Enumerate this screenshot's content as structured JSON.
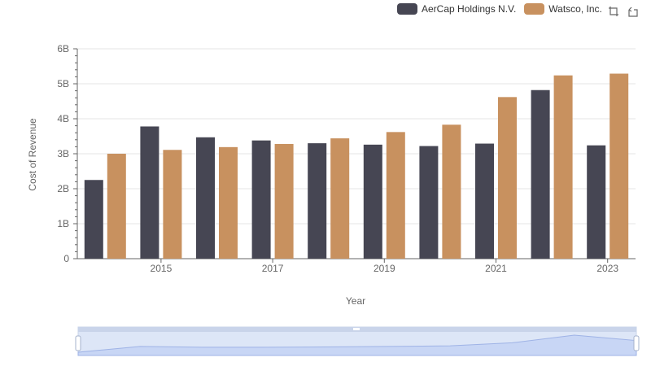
{
  "legend": {
    "series1": "AerCap Holdings N.V.",
    "series2": "Watsco, Inc."
  },
  "colors": {
    "series1": "#464653",
    "series2": "#c8915f"
  },
  "toolbox": {
    "icons": [
      "data-zoom-icon",
      "zoom-reset-icon"
    ]
  },
  "chart_data": {
    "type": "bar",
    "xlabel": "Year",
    "ylabel": "Cost of Revenue",
    "ylim": [
      0,
      6000000000
    ],
    "y_ticks": [
      "0",
      "1B",
      "2B",
      "3B",
      "4B",
      "5B",
      "6B"
    ],
    "categories": [
      "2014",
      "2015",
      "2016",
      "2017",
      "2018",
      "2019",
      "2020",
      "2021",
      "2022",
      "2023"
    ],
    "x_tick_labels": [
      "2015",
      "2017",
      "2019",
      "2021",
      "2023"
    ],
    "series": [
      {
        "name": "AerCap Holdings N.V.",
        "values": [
          2250000000,
          3780000000,
          3470000000,
          3380000000,
          3300000000,
          3260000000,
          3220000000,
          3290000000,
          4820000000,
          3240000000
        ]
      },
      {
        "name": "Watsco, Inc.",
        "values": [
          3000000000,
          3110000000,
          3190000000,
          3280000000,
          3440000000,
          3620000000,
          3830000000,
          4620000000,
          5240000000,
          5290000000
        ]
      }
    ],
    "grid": true,
    "legend_position": "top-right",
    "data_zoom": true
  }
}
